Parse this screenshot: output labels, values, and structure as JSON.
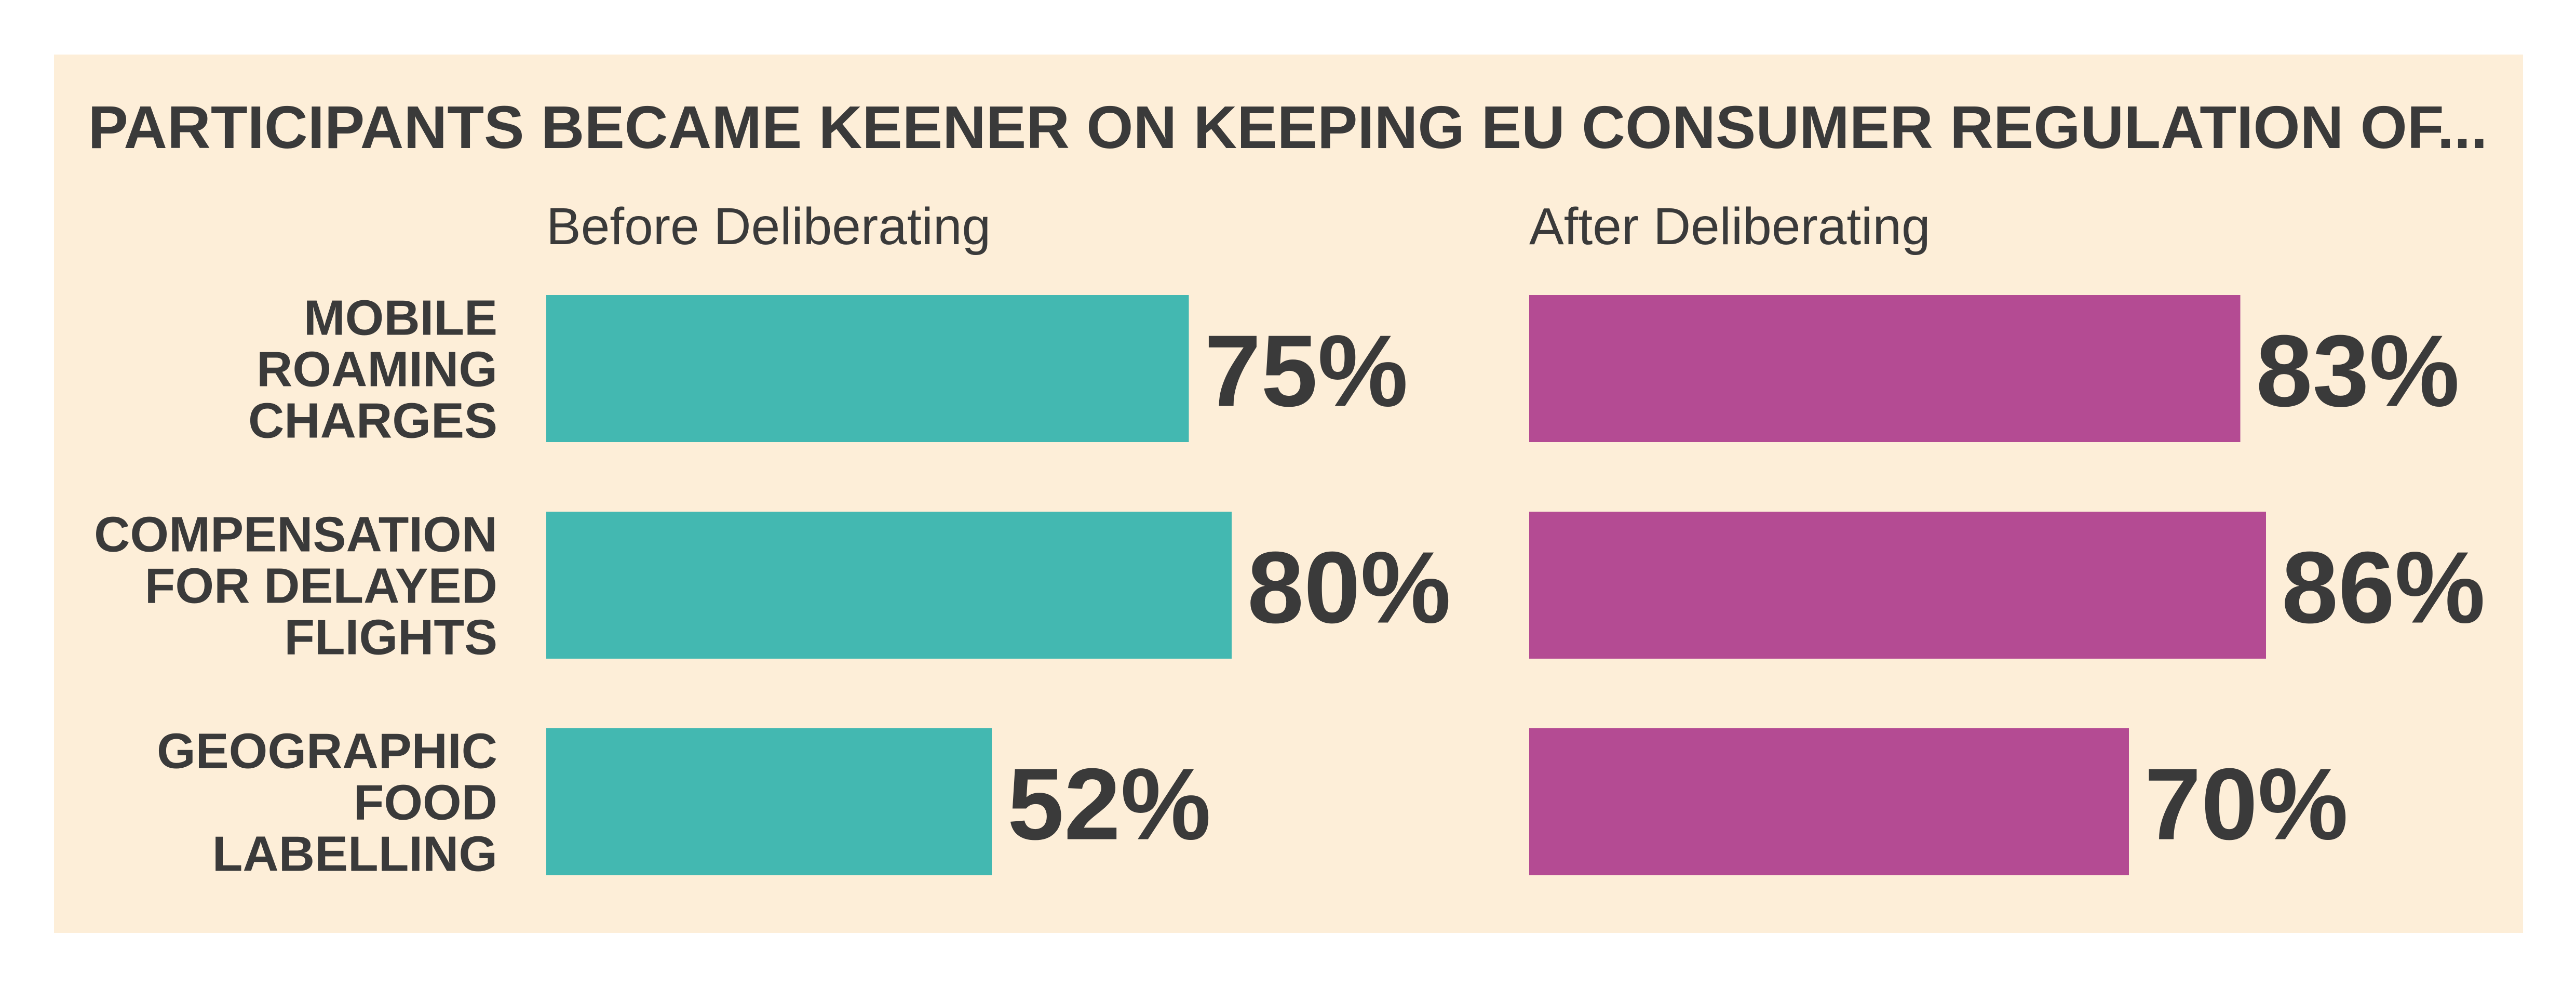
{
  "chart_data": {
    "type": "bar",
    "orientation": "horizontal",
    "title": "PARTICIPANTS BECAME KEENER ON KEEPING EU CONSUMER REGULATION OF...",
    "categories": [
      [
        "MOBILE",
        "ROAMING",
        "CHARGES"
      ],
      [
        "COMPENSATION",
        "FOR DELAYED",
        "FLIGHTS"
      ],
      [
        "GEOGRAPHIC",
        "FOOD",
        "LABELLING"
      ]
    ],
    "series": [
      {
        "name": "Before Deliberating",
        "color": "#43b8b1",
        "values": [
          75,
          80,
          52
        ],
        "labels": [
          "75%",
          "80%",
          "52%"
        ]
      },
      {
        "name": "After Deliberating",
        "color": "#b44b93",
        "values": [
          83,
          86,
          70
        ],
        "labels": [
          "83%",
          "86%",
          "70%"
        ]
      }
    ],
    "value_unit": "%",
    "grid": false,
    "legend": "panel headers above bars",
    "background_color": "#fdeed8",
    "text_color": "#3a3a3a"
  }
}
